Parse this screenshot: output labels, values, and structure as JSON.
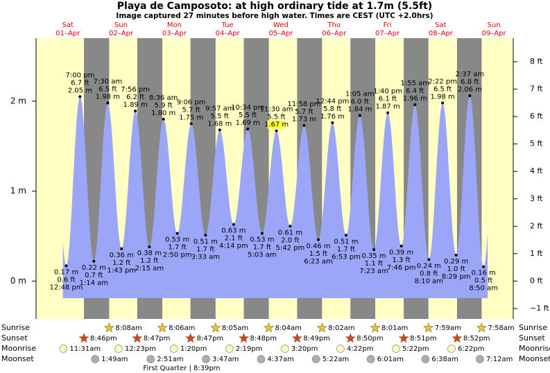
{
  "chart_data": {
    "type": "tide",
    "title": "Playa de Camposoto: at high  ordinary tide at 1.7m (5.5ft)",
    "subtitle": "Image captured 27 minutes before high water. Times are CEST (UTC +2.0hrs)",
    "days": [
      {
        "weekday": "Sat",
        "date": "01–Apr"
      },
      {
        "weekday": "Sun",
        "date": "02–Apr"
      },
      {
        "weekday": "Mon",
        "date": "03–Apr"
      },
      {
        "weekday": "Tue",
        "date": "04–Apr"
      },
      {
        "weekday": "Wed",
        "date": "05–Apr"
      },
      {
        "weekday": "Thu",
        "date": "06–Apr"
      },
      {
        "weekday": "Fri",
        "date": "07–Apr"
      },
      {
        "weekday": "Sat",
        "date": "08–Apr"
      },
      {
        "weekday": "Sun",
        "date": "09–Apr"
      }
    ],
    "xlim": [
      -0.8,
      214.2
    ],
    "x": [
      12.8,
      19.0,
      25.23,
      31.5,
      37.72,
      43.93,
      50.25,
      56.6,
      62.83,
      69.1,
      75.55,
      81.95,
      88.23,
      94.57,
      101.05,
      107.5,
      113.7,
      119.97,
      126.38,
      132.73,
      138.88,
      145.08,
      151.38,
      157.67,
      163.77,
      169.92,
      176.17,
      182.37,
      188.48,
      194.62,
      200.83
    ],
    "values": [
      0.17,
      2.05,
      0.22,
      1.98,
      0.36,
      1.89,
      0.38,
      1.8,
      0.53,
      1.75,
      0.51,
      1.68,
      0.63,
      1.69,
      0.53,
      1.67,
      0.61,
      1.73,
      0.46,
      1.76,
      0.51,
      1.84,
      0.35,
      1.87,
      0.39,
      1.96,
      0.24,
      1.98,
      0.29,
      2.06,
      0.16
    ],
    "value_labels": [
      "0.17 m",
      "2.05 m",
      "0.22 m",
      "1.98 m",
      "0.36 m",
      "1.89 m",
      "0.38 m",
      "1.80 m",
      "0.53 m",
      "1.75 m",
      "0.51 m",
      "1.68 m",
      "0.63 m",
      "1.69 m",
      "0.53 m",
      "1.67 m",
      "0.61 m",
      "1.73 m",
      "0.46 m",
      "1.76 m",
      "0.51 m",
      "1.84 m",
      "0.35 m",
      "1.87 m",
      "0.39 m",
      "1.96 m",
      "0.24 m",
      "1.98 m",
      "0.29 m",
      "2.06 m",
      "0.16 m"
    ],
    "feet_labels": [
      "0.6 ft",
      "6.7 ft",
      "0.7 ft",
      "6.5 ft",
      "1.2 ft",
      "6.2 ft",
      "1.2 ft",
      "5.9 ft",
      "1.7 ft",
      "5.7 ft",
      "1.7 ft",
      "5.5 ft",
      "2.1 ft",
      "5.5 ft",
      "1.7 ft",
      "5.5 ft",
      "2.0 ft",
      "5.7 ft",
      "1.5 ft",
      "5.8 ft",
      "1.7 ft",
      "6.0 ft",
      "1.1 ft",
      "6.1 ft",
      "1.3 ft",
      "6.4 ft",
      "0.8 ft",
      "6.5 ft",
      "1.0 ft",
      "6.8 ft",
      "0.5 ft"
    ],
    "times": [
      "12:48 pm",
      "7:00 pm",
      "1:14 am",
      "7:30 am",
      "1:43 pm",
      "7:56 pm",
      "2:15 am",
      "8:36 am",
      "2:50 pm",
      "9:06 pm",
      "3:33 am",
      "9:57 am",
      "4:14 pm",
      "10:34 pm",
      "5:03 am",
      "11:30 am",
      "5:42 pm",
      "11:58 pm",
      "6:23 am",
      "12:44 pm",
      "6:53 pm",
      "1:05 am",
      "7:23 am",
      "1:40 pm",
      "7:46 pm",
      "1:55 am",
      "8:10 am",
      "2:22 pm",
      "8:29 pm",
      "2:37 am",
      "8:50 am"
    ],
    "highlight_index": 15,
    "color": "#9ca6f8",
    "ylim": [
      -0.42,
      2.7
    ],
    "yticks": [
      {
        "value": 0,
        "label": "0 m"
      },
      {
        "value": 1,
        "label": "1 m"
      },
      {
        "value": 2,
        "label": "2 m"
      }
    ],
    "y2lim": [
      -1.38,
      8.86
    ],
    "y2ticks": [
      {
        "value": -1,
        "label": "−1 ft"
      },
      {
        "value": 0,
        "label": "0 ft"
      },
      {
        "value": 1,
        "label": "1 ft"
      },
      {
        "value": 2,
        "label": "2 ft"
      },
      {
        "value": 3,
        "label": "3 ft"
      },
      {
        "value": 4,
        "label": "4 ft"
      },
      {
        "value": 5,
        "label": "5 ft"
      },
      {
        "value": 6,
        "label": "6 ft"
      },
      {
        "value": 7,
        "label": "7 ft"
      },
      {
        "value": 8,
        "label": "8 ft"
      }
    ],
    "sunrise": {
      "name": "Sunrise",
      "x": [
        32.13,
        56.1,
        80.08,
        104.07,
        128.03,
        152.02,
        175.98,
        199.97
      ],
      "labels": [
        "8:08am",
        "8:06am",
        "8:05am",
        "8:04am",
        "8:02am",
        "8:01am",
        "7:59am",
        "7:58am"
      ]
    },
    "sunset": {
      "name": "Sunset",
      "x": [
        20.77,
        44.78,
        68.78,
        92.8,
        116.82,
        140.83,
        164.85,
        188.87
      ],
      "labels": [
        "8:46pm",
        "8:47pm",
        "8:47pm",
        "8:48pm",
        "8:49pm",
        "8:50pm",
        "8:51pm",
        "8:52pm"
      ]
    },
    "moonrise": {
      "name": "Moonrise",
      "x": [
        11.52,
        36.38,
        61.33,
        86.32,
        111.33,
        136.37,
        161.37,
        186.37
      ],
      "labels": [
        "11:31am",
        "12:23pm",
        "1:20pm",
        "2:19pm",
        "3:20pm",
        "4:22pm",
        "5:22pm",
        "6:22pm"
      ]
    },
    "moonset": {
      "name": "Moonset",
      "x": [
        25.82,
        50.85,
        75.78,
        100.62,
        125.37,
        150.02,
        174.63,
        199.2
      ],
      "labels": [
        "1:49am",
        "2:51am",
        "3:47am",
        "4:37am",
        "5:22am",
        "6:01am",
        "6:38am",
        "7:12am"
      ]
    },
    "moon_phase": "First Quarter | 8:39pm"
  }
}
